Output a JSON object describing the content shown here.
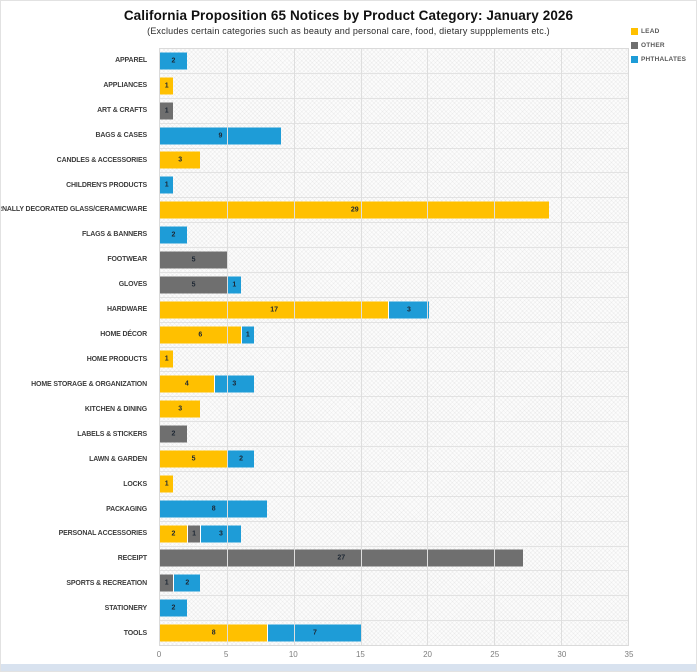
{
  "title": "California Proposition 65 Notices by Product Category: January 2026",
  "subtitle": "(Excludes certain categories such as beauty and personal care, food, dietary suppplements etc.)",
  "colors": {
    "lead": "#FFC000",
    "other": "#6F6F6F",
    "phthalates": "#1E9CD7",
    "bottom_strip": "#d8e2ef"
  },
  "chart_data": {
    "type": "bar",
    "orientation": "horizontal",
    "stacked": true,
    "title": "California Proposition 65 Notices by Product Category: January 2026",
    "subtitle": "(Excludes certain categories such as beauty and personal care, food, dietary suppplements etc.)",
    "xlabel": "",
    "ylabel": "",
    "xlim": [
      0,
      35
    ],
    "xticks": [
      0,
      5,
      10,
      15,
      20,
      25,
      30,
      35
    ],
    "grid": true,
    "legend_position": "top-right",
    "categories": [
      "APPAREL",
      "APPLIANCES",
      "ART & CRAFTS",
      "BAGS & CASES",
      "CANDLES & ACCESSORIES",
      "CHILDREN'S PRODUCTS",
      "EXTERNALLY DECORATED GLASS/CERAMICWARE",
      "FLAGS & BANNERS",
      "FOOTWEAR",
      "GLOVES",
      "HARDWARE",
      "HOME DÉCOR",
      "HOME PRODUCTS",
      "HOME STORAGE & ORGANIZATION",
      "KITCHEN & DINING",
      "LABELS & STICKERS",
      "LAWN & GARDEN",
      "LOCKS",
      "PACKAGING",
      "PERSONAL ACCESSORIES",
      "RECEIPT",
      "SPORTS & RECREATION",
      "STATIONERY",
      "TOOLS"
    ],
    "series": [
      {
        "name": "LEAD",
        "color": "#FFC000",
        "values": [
          0,
          1,
          0,
          0,
          3,
          0,
          29,
          0,
          0,
          0,
          17,
          6,
          1,
          4,
          3,
          0,
          5,
          1,
          0,
          2,
          0,
          0,
          0,
          8
        ]
      },
      {
        "name": "OTHER",
        "color": "#6F6F6F",
        "values": [
          0,
          0,
          1,
          0,
          0,
          0,
          0,
          0,
          5,
          5,
          0,
          0,
          0,
          0,
          0,
          2,
          0,
          0,
          0,
          1,
          27,
          1,
          0,
          0
        ]
      },
      {
        "name": "PHTHALATES",
        "color": "#1E9CD7",
        "values": [
          2,
          0,
          0,
          9,
          0,
          1,
          0,
          2,
          0,
          1,
          3,
          1,
          0,
          3,
          0,
          0,
          2,
          0,
          8,
          3,
          0,
          2,
          2,
          7
        ]
      }
    ]
  }
}
